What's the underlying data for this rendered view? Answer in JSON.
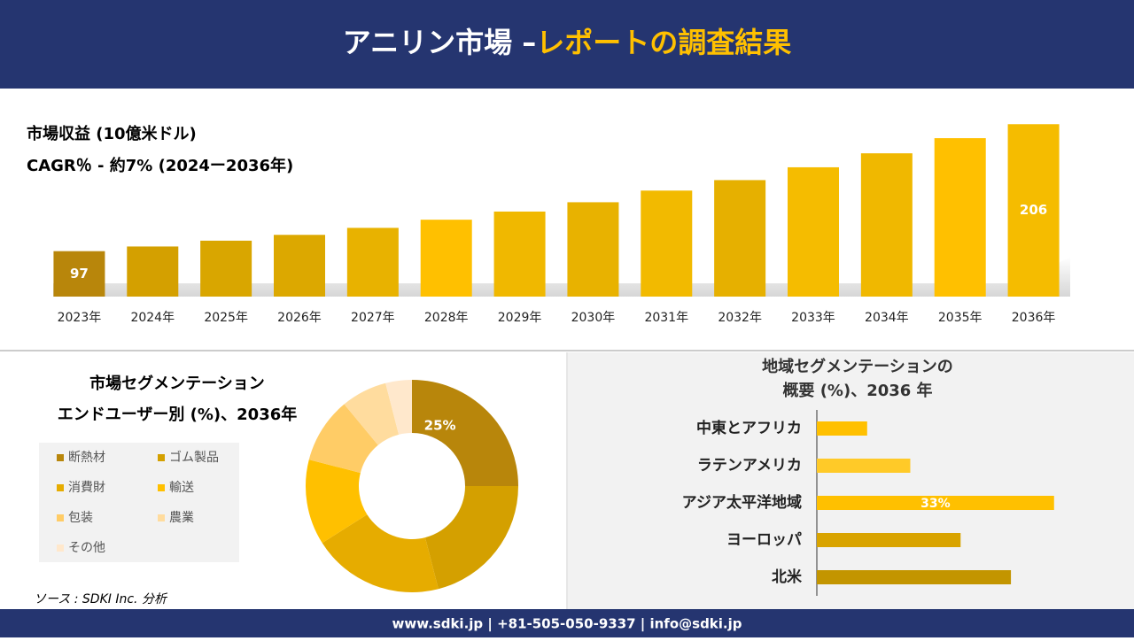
{
  "header": {
    "title": "アニリン市場 –",
    "title_accent": "レポートの調査結果"
  },
  "chart_data": [
    {
      "type": "bar",
      "title": "市場収益 (10億米ドル)",
      "subtitle": "CAGR％ - 約7% (2024ー2036年)",
      "categories": [
        "2023年",
        "2024年",
        "2025年",
        "2026年",
        "2027年",
        "2028年",
        "2029年",
        "2030年",
        "2031年",
        "2032年",
        "2033年",
        "2034年",
        "2035年",
        "2036年"
      ],
      "values": [
        97,
        101,
        106,
        111,
        117,
        124,
        131,
        139,
        149,
        158,
        169,
        181,
        194,
        206
      ],
      "colors": [
        "#b8860b",
        "#d4a000",
        "#d9a600",
        "#dca800",
        "#e8b200",
        "#ffc000",
        "#f0b800",
        "#e8b200",
        "#f2ba00",
        "#e6b000",
        "#f5bc00",
        "#f0b800",
        "#ffc000",
        "#f5bc00"
      ],
      "ylim": [
        58,
        210
      ]
    },
    {
      "type": "donut",
      "title": [
        "市場セグメンテーション",
        "エンドユーザー別 (%)、2036年"
      ],
      "categories": [
        "断熱材",
        "ゴム製品",
        "消費財",
        "輸送",
        "包装",
        "農業",
        "その他"
      ],
      "values": [
        25,
        21,
        20,
        13,
        10,
        7,
        4
      ],
      "value_labels": [
        "25%",
        null,
        null,
        null,
        null,
        null,
        null
      ],
      "colors": [
        "#b8860b",
        "#d4a000",
        "#e6ac00",
        "#ffc000",
        "#ffcc66",
        "#ffdc9e",
        "#ffe8cc"
      ]
    },
    {
      "type": "bar",
      "horizontal": true,
      "title": [
        "地域セグメンテーションの",
        "概要 (%)、2036 年"
      ],
      "categories": [
        "中東とアフリカ",
        "ラテンアメリカ",
        "アジア太平洋地域",
        "ヨーロッパ",
        "北米"
      ],
      "values": [
        7,
        13,
        33,
        20,
        27
      ],
      "value_labels": [
        null,
        null,
        "33%",
        null,
        null
      ],
      "colors": [
        "#ffc000",
        "#ffca28",
        "#ffc000",
        "#d9a400",
        "#c39500"
      ],
      "xlim": [
        0,
        35
      ]
    }
  ],
  "source": "ソース : SDKI Inc. 分析",
  "footer": "www.sdki.jp | +81-505-050-9337 | info@sdki.jp"
}
